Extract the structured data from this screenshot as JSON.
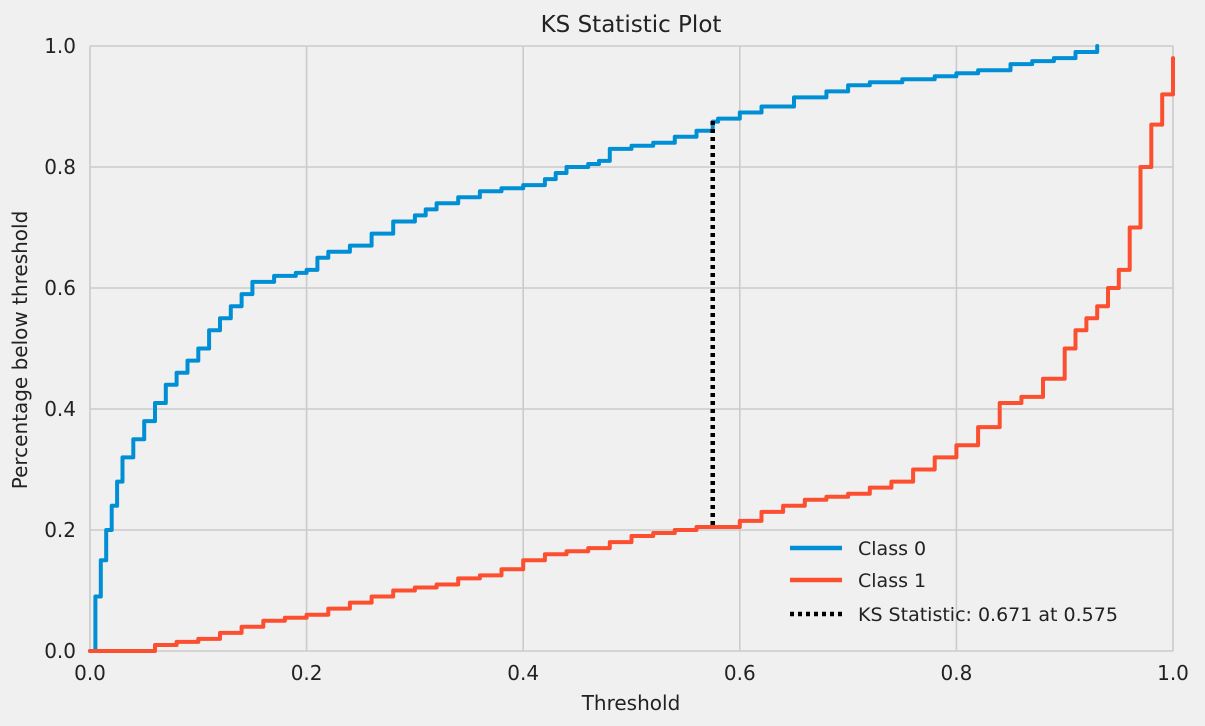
{
  "chart_data": {
    "type": "line",
    "title": "KS Statistic Plot",
    "xlabel": "Threshold",
    "ylabel": "Percentage below threshold",
    "xlim": [
      0.0,
      1.0
    ],
    "ylim": [
      0.0,
      1.0
    ],
    "x_ticks": [
      "0.0",
      "0.2",
      "0.4",
      "0.6",
      "0.8",
      "1.0"
    ],
    "y_ticks": [
      "0.0",
      "0.2",
      "0.4",
      "0.6",
      "0.8",
      "1.0"
    ],
    "grid": true,
    "legend_position": "bottom-right",
    "series": [
      {
        "name": "Class 0",
        "color": "#008fd5",
        "x": [
          0.0,
          0.005,
          0.01,
          0.015,
          0.02,
          0.025,
          0.03,
          0.04,
          0.05,
          0.06,
          0.07,
          0.08,
          0.09,
          0.1,
          0.11,
          0.12,
          0.13,
          0.14,
          0.15,
          0.17,
          0.19,
          0.2,
          0.21,
          0.22,
          0.24,
          0.26,
          0.28,
          0.3,
          0.31,
          0.32,
          0.34,
          0.36,
          0.38,
          0.4,
          0.42,
          0.43,
          0.44,
          0.46,
          0.47,
          0.48,
          0.5,
          0.52,
          0.54,
          0.56,
          0.575,
          0.58,
          0.6,
          0.62,
          0.65,
          0.68,
          0.7,
          0.72,
          0.75,
          0.78,
          0.8,
          0.82,
          0.85,
          0.87,
          0.89,
          0.91,
          0.93
        ],
        "values": [
          0.0,
          0.09,
          0.15,
          0.2,
          0.24,
          0.28,
          0.32,
          0.35,
          0.38,
          0.41,
          0.44,
          0.46,
          0.48,
          0.5,
          0.53,
          0.55,
          0.57,
          0.59,
          0.61,
          0.62,
          0.625,
          0.63,
          0.65,
          0.66,
          0.67,
          0.69,
          0.71,
          0.72,
          0.73,
          0.74,
          0.75,
          0.76,
          0.765,
          0.77,
          0.78,
          0.79,
          0.8,
          0.805,
          0.81,
          0.83,
          0.835,
          0.84,
          0.85,
          0.86,
          0.875,
          0.88,
          0.89,
          0.9,
          0.915,
          0.925,
          0.935,
          0.94,
          0.945,
          0.95,
          0.955,
          0.96,
          0.97,
          0.975,
          0.98,
          0.99,
          1.0
        ]
      },
      {
        "name": "Class 1",
        "color": "#fc4f30",
        "x": [
          0.0,
          0.04,
          0.06,
          0.08,
          0.1,
          0.12,
          0.14,
          0.16,
          0.18,
          0.2,
          0.22,
          0.24,
          0.26,
          0.28,
          0.3,
          0.32,
          0.34,
          0.36,
          0.38,
          0.4,
          0.42,
          0.44,
          0.46,
          0.48,
          0.5,
          0.52,
          0.54,
          0.56,
          0.575,
          0.6,
          0.62,
          0.64,
          0.66,
          0.68,
          0.7,
          0.72,
          0.74,
          0.76,
          0.78,
          0.8,
          0.82,
          0.84,
          0.86,
          0.88,
          0.9,
          0.91,
          0.92,
          0.93,
          0.94,
          0.95,
          0.96,
          0.97,
          0.98,
          0.99,
          1.0
        ],
        "values": [
          0.0,
          0.0,
          0.01,
          0.015,
          0.02,
          0.03,
          0.04,
          0.05,
          0.055,
          0.06,
          0.07,
          0.08,
          0.09,
          0.1,
          0.105,
          0.11,
          0.12,
          0.125,
          0.135,
          0.15,
          0.16,
          0.165,
          0.17,
          0.18,
          0.19,
          0.195,
          0.2,
          0.205,
          0.205,
          0.215,
          0.23,
          0.24,
          0.25,
          0.255,
          0.26,
          0.27,
          0.28,
          0.3,
          0.32,
          0.34,
          0.37,
          0.41,
          0.42,
          0.45,
          0.5,
          0.53,
          0.55,
          0.57,
          0.6,
          0.63,
          0.7,
          0.8,
          0.87,
          0.92,
          0.98
        ]
      }
    ],
    "ks_line": {
      "label": "KS Statistic: 0.671 at 0.575",
      "x": 0.575,
      "y_low": 0.205,
      "y_high": 0.876,
      "color": "#000000"
    }
  }
}
